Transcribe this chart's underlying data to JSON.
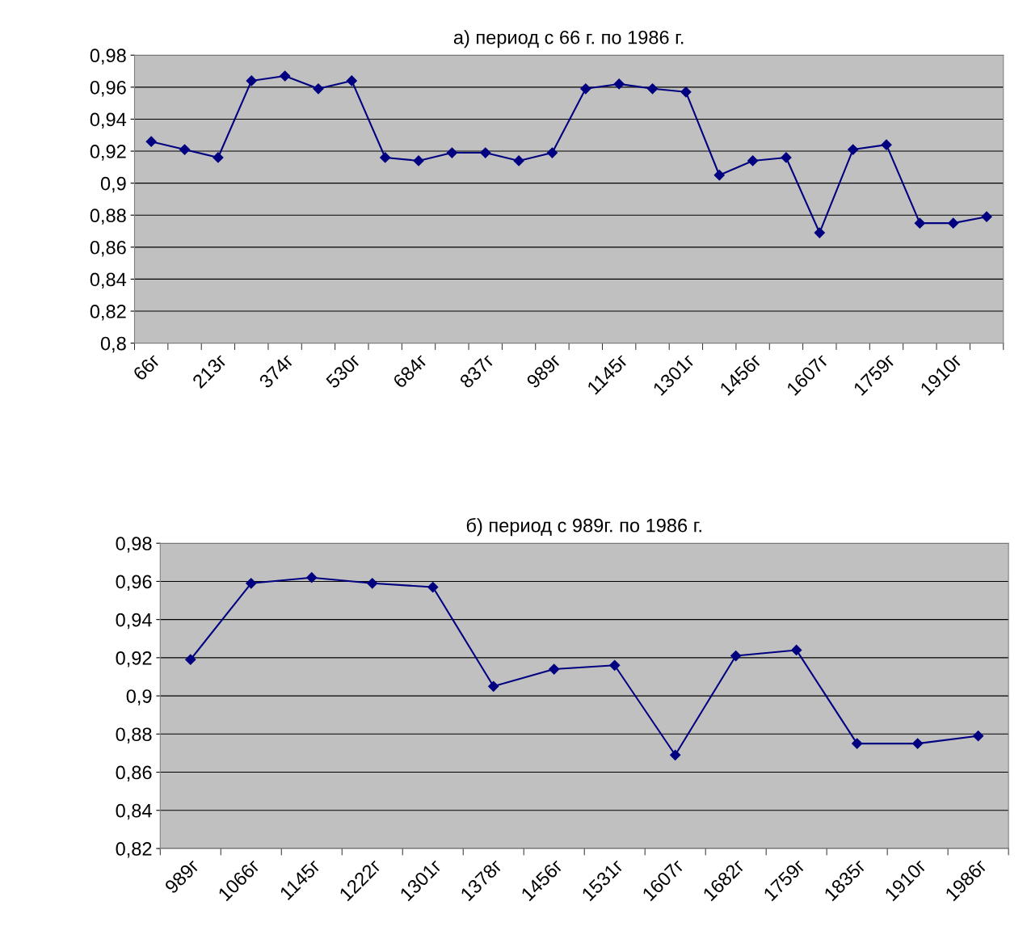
{
  "chart_data": [
    {
      "type": "line",
      "title": "а) период с 66 г. по 1986 г.",
      "categories": [
        "66г",
        null,
        "213г",
        null,
        "374г",
        null,
        "530г",
        null,
        "684г",
        null,
        "837г",
        null,
        "989г",
        null,
        "1145г",
        null,
        "1301г",
        null,
        "1456г",
        null,
        "1607г",
        null,
        "1759г",
        null,
        "1910г",
        null
      ],
      "series": [
        {
          "color": "#000080",
          "values": [
            0.926,
            0.921,
            0.916,
            0.964,
            0.967,
            0.959,
            0.964,
            0.916,
            0.914,
            0.919,
            0.919,
            0.914,
            0.919,
            0.959,
            0.962,
            0.959,
            0.957,
            0.905,
            0.914,
            0.916,
            0.869,
            0.921,
            0.924,
            0.875,
            0.875,
            0.879
          ]
        }
      ],
      "ylim": [
        0.8,
        0.98
      ],
      "yticks": [
        {
          "value": 0.8,
          "label": "0,8"
        },
        {
          "value": 0.82,
          "label": "0,82"
        },
        {
          "value": 0.84,
          "label": "0,84"
        },
        {
          "value": 0.86,
          "label": "0,86"
        },
        {
          "value": 0.88,
          "label": "0,88"
        },
        {
          "value": 0.9,
          "label": "0,9"
        },
        {
          "value": 0.92,
          "label": "0,92"
        },
        {
          "value": 0.94,
          "label": "0,94"
        },
        {
          "value": 0.96,
          "label": "0,96"
        },
        {
          "value": 0.98,
          "label": "0,98"
        }
      ],
      "grid": "y",
      "marker": "diamond",
      "line_style": "solid"
    },
    {
      "type": "line",
      "title": "б) период с 989г. по 1986 г.",
      "categories": [
        "989г",
        "1066г",
        "1145г",
        "1222г",
        "1301г",
        "1378г",
        "1456г",
        "1531г",
        "1607г",
        "1682г",
        "1759г",
        "1835г",
        "1910г",
        "1986г"
      ],
      "series": [
        {
          "color": "#000080",
          "values": [
            0.919,
            0.959,
            0.962,
            0.959,
            0.957,
            0.905,
            0.914,
            0.916,
            0.869,
            0.921,
            0.924,
            0.875,
            0.875,
            0.879
          ]
        }
      ],
      "ylim": [
        0.82,
        0.98
      ],
      "yticks": [
        {
          "value": 0.82,
          "label": "0,82"
        },
        {
          "value": 0.84,
          "label": "0,84"
        },
        {
          "value": 0.86,
          "label": "0,86"
        },
        {
          "value": 0.88,
          "label": "0,88"
        },
        {
          "value": 0.9,
          "label": "0,9"
        },
        {
          "value": 0.92,
          "label": "0,92"
        },
        {
          "value": 0.94,
          "label": "0,94"
        },
        {
          "value": 0.96,
          "label": "0,96"
        },
        {
          "value": 0.98,
          "label": "0,98"
        }
      ],
      "grid": "y",
      "marker": "diamond",
      "line_style": "solid"
    }
  ]
}
